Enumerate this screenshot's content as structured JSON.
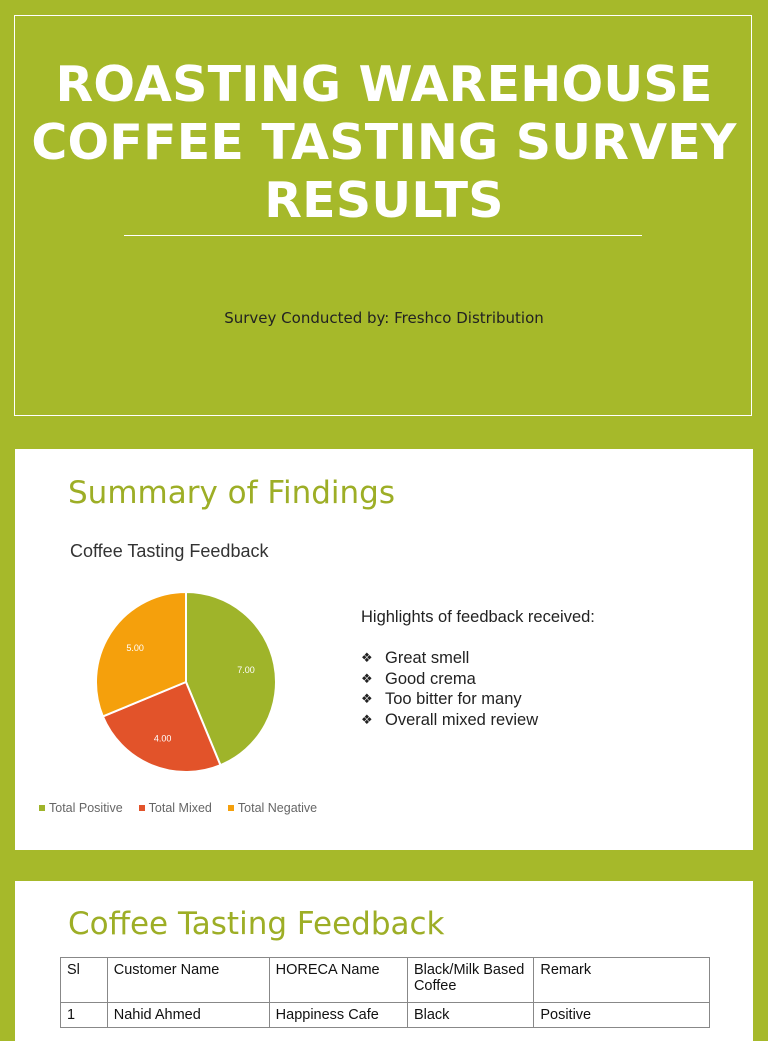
{
  "slide1": {
    "title": "ROASTING WAREHOUSE COFFEE TASTING SURVEY RESULTS",
    "subtitle": "Survey Conducted by: Freshco Distribution"
  },
  "slide2": {
    "heading": "Summary of Findings",
    "highlights_title": "Highlights of feedback received:",
    "highlights": [
      "Great smell",
      "Good crema",
      "Too bitter for many",
      "Overall mixed review"
    ],
    "bullet_icon": "diamond-bullet-icon"
  },
  "chart_data": {
    "type": "pie",
    "title": "Coffee Tasting Feedback",
    "categories": [
      "Total Positive",
      "Total Mixed",
      "Total Negative"
    ],
    "values": [
      7,
      4,
      5
    ],
    "data_labels": [
      "7.00",
      "4.00",
      "5.00"
    ],
    "colors": [
      "#9fb42a",
      "#e2532a",
      "#f5a00c"
    ],
    "legend_position": "bottom"
  },
  "slide3": {
    "heading": "Coffee Tasting Feedback",
    "table": {
      "headers": [
        "Sl",
        "Customer Name",
        "HORECA Name",
        "Black/Milk Based Coffee",
        "Remark"
      ],
      "rows": [
        [
          "1",
          "Nahid Ahmed",
          "Happiness Cafe",
          "Black",
          "Positive"
        ]
      ]
    }
  }
}
